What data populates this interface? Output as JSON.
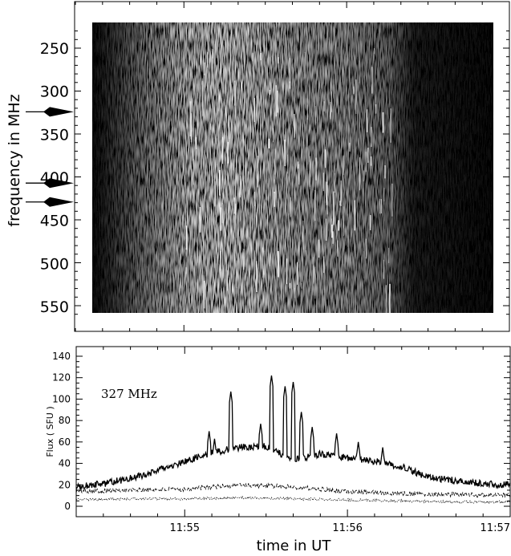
{
  "chart_data": [
    {
      "type": "heatmap",
      "title": "",
      "xlabel": "",
      "ylabel": "frequency in MHz",
      "ytick_labels": [
        "250",
        "300",
        "350",
        "400",
        "450",
        "500",
        "550"
      ],
      "yticks": [
        250,
        300,
        350,
        400,
        450,
        500,
        550
      ],
      "ylim": [
        560,
        218
      ],
      "xlim": [
        "11:54:20",
        "11:57:00"
      ],
      "image_extent": {
        "t_start": "11:54:20",
        "t_end": "11:57:00",
        "f_top": 228,
        "f_bottom": 560
      },
      "burst_envelope": [
        {
          "t": "11:54:20",
          "intensity": 0.02
        },
        {
          "t": "11:54:45",
          "intensity": 0.45
        },
        {
          "t": "11:55:00",
          "intensity": 0.7
        },
        {
          "t": "11:55:15",
          "intensity": 0.8
        },
        {
          "t": "11:55:30",
          "intensity": 0.7
        },
        {
          "t": "11:55:45",
          "intensity": 0.6
        },
        {
          "t": "11:56:00",
          "intensity": 0.55
        },
        {
          "t": "11:56:15",
          "intensity": 0.4
        },
        {
          "t": "11:56:25",
          "intensity": 0.1
        },
        {
          "t": "11:57:00",
          "intensity": 0.02
        }
      ],
      "arrow_markers_mhz": [
        327,
        410,
        432
      ],
      "colormap": "grayscale"
    },
    {
      "type": "line",
      "title": "",
      "annotation": "327 MHz",
      "xlabel": "time in UT",
      "ylabel": "Flux ( SFU )",
      "xtick_labels": [
        "11:55",
        "11:56",
        "11:57"
      ],
      "xticks": [
        "11:55:00",
        "11:56:00",
        "11:57:00"
      ],
      "xlim": [
        "11:54:20",
        "11:57:00"
      ],
      "ylim": [
        -5,
        145
      ],
      "ytick_labels": [
        "0",
        "20",
        "40",
        "60",
        "80",
        "100",
        "120",
        "140"
      ],
      "yticks": [
        0,
        20,
        40,
        60,
        80,
        100,
        120,
        140
      ],
      "series": [
        {
          "style": "solid",
          "x": [
            "11:54:20",
            "11:54:30",
            "11:54:40",
            "11:54:50",
            "11:55:00",
            "11:55:10",
            "11:55:20",
            "11:55:30",
            "11:55:40",
            "11:55:50",
            "11:56:00",
            "11:56:10",
            "11:56:20",
            "11:56:30",
            "11:56:40",
            "11:56:50",
            "11:57:00"
          ],
          "values": [
            18,
            21,
            26,
            33,
            42,
            50,
            55,
            56,
            43,
            49,
            45,
            42,
            37,
            27,
            24,
            21,
            20
          ],
          "spikes": [
            {
              "x": "11:55:09",
              "value": 70
            },
            {
              "x": "11:55:11",
              "value": 63
            },
            {
              "x": "11:55:17",
              "value": 107
            },
            {
              "x": "11:55:28",
              "value": 77
            },
            {
              "x": "11:55:32",
              "value": 122
            },
            {
              "x": "11:55:37",
              "value": 112
            },
            {
              "x": "11:55:40",
              "value": 116
            },
            {
              "x": "11:55:43",
              "value": 88
            },
            {
              "x": "11:55:47",
              "value": 74
            },
            {
              "x": "11:55:56",
              "value": 68
            },
            {
              "x": "11:56:04",
              "value": 60
            },
            {
              "x": "11:56:13",
              "value": 55
            }
          ]
        },
        {
          "style": "dashed",
          "x": [
            "11:54:20",
            "11:54:40",
            "11:55:00",
            "11:55:20",
            "11:55:40",
            "11:56:00",
            "11:56:20",
            "11:56:40",
            "11:57:00"
          ],
          "values": [
            14,
            15,
            16,
            20,
            18,
            14,
            12,
            11,
            10
          ]
        },
        {
          "style": "dotted",
          "x": [
            "11:54:20",
            "11:54:40",
            "11:55:00",
            "11:55:20",
            "11:55:40",
            "11:56:00",
            "11:56:20",
            "11:56:40",
            "11:57:00"
          ],
          "values": [
            6,
            7,
            7,
            8,
            7,
            6,
            5,
            4,
            4
          ]
        }
      ]
    }
  ]
}
